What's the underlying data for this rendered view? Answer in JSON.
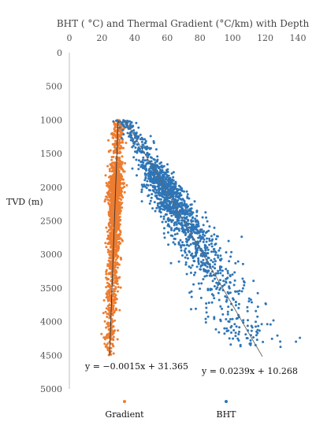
{
  "chart_data": {
    "type": "scatter",
    "title": "BHT ( °C) and Thermal Gradient (°C/km) with Depth",
    "ylabel": "TVD (m)",
    "xlabel": "",
    "x_axis_position": "top",
    "y_inverted": true,
    "xlim": [
      0,
      140
    ],
    "ylim": [
      0,
      5000
    ],
    "x_ticks": [
      0,
      20,
      40,
      60,
      80,
      100,
      120,
      140
    ],
    "y_ticks": [
      0,
      500,
      1000,
      1500,
      2000,
      2500,
      3000,
      3500,
      4000,
      4500,
      5000
    ],
    "grid": false,
    "legend_position": "bottom",
    "series": [
      {
        "name": "Gradient",
        "color": "#ED7D31",
        "depth_range": [
          1000,
          4500
        ],
        "trendline": {
          "slope": -0.0015,
          "intercept": 31.365,
          "label": "y = −0.0015x + 31.365"
        }
      },
      {
        "name": "BHT",
        "color": "#2E75B6",
        "depth_range": [
          1000,
          4400
        ],
        "trendline": {
          "slope": 0.0239,
          "intercept": 10.268,
          "label": "y = 0.0239x + 10.268"
        }
      }
    ]
  }
}
